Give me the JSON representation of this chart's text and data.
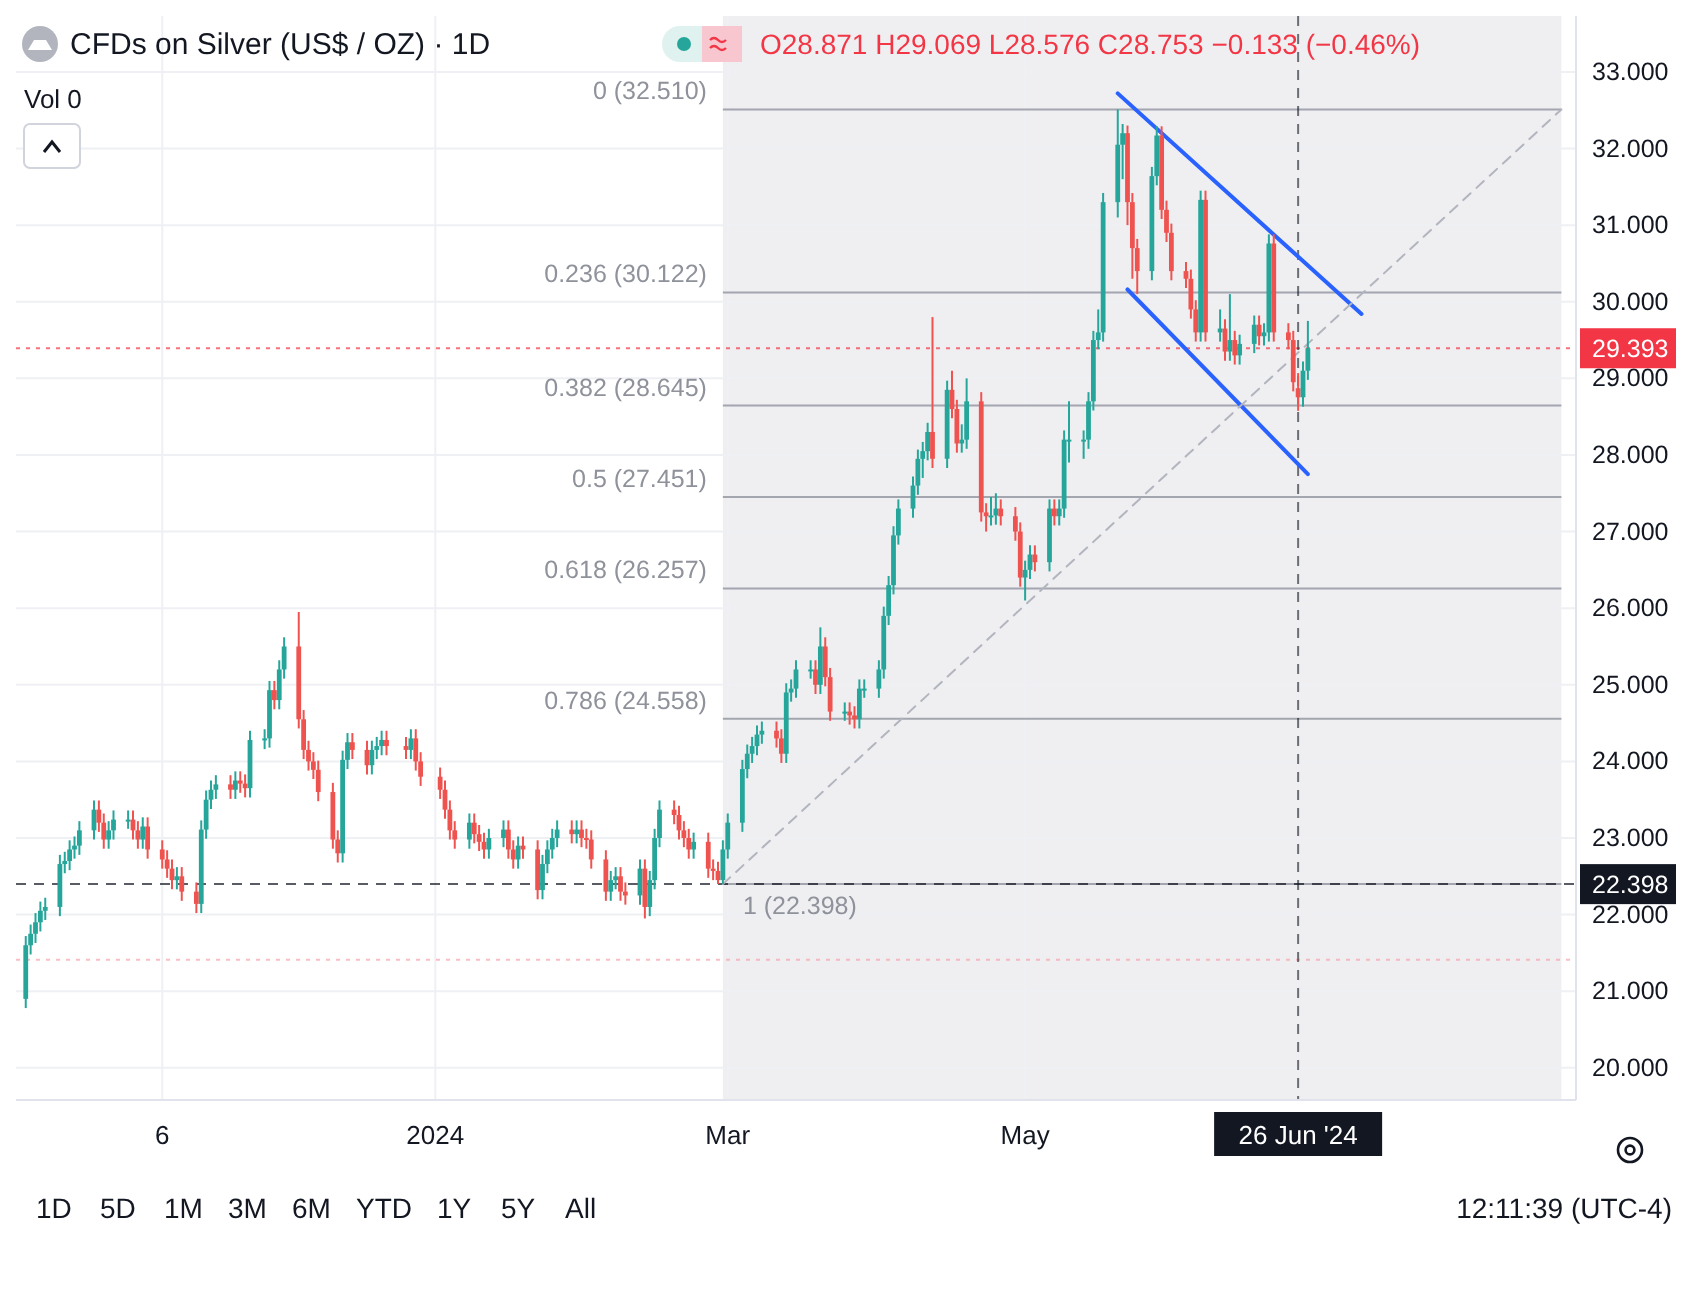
{
  "chart_data": {
    "type": "candlestick",
    "title": "CFDs on Silver (US$ / OZ) · 1D",
    "subtitle": "O28.871 H29.069 L28.576 C28.753 −0.133 (−0.46%)",
    "annotations": [
      "Vol 0",
      "1D",
      "5D",
      "1M",
      "3M",
      "6M",
      "YTD",
      "1Y",
      "5Y",
      "All",
      "12:11:39 (UTC-4)"
    ],
    "colors": [
      "#26a69a",
      "#26a69a",
      "#26a69a",
      "#26a69a",
      "#26a69a",
      "#26a69a",
      "#26a69a",
      "#26a69a",
      "#26a69a",
      "#26a69a",
      "#26a69a",
      "#ef5350",
      "#ef5350",
      "#26a69a",
      "#26a69a",
      "#26a69a",
      "#ef5350",
      "#ef5350",
      "#26a69a",
      "#ef5350",
      "#ef5350",
      "#ef5350",
      "#ef5350",
      "#26a69a",
      "#ef5350",
      "#ef5350",
      "#26a69a",
      "#26a69a",
      "#26a69a",
      "#26a69a",
      "#ef5350",
      "#26a69a",
      "#ef5350",
      "#ef5350",
      "#26a69a",
      "#26a69a",
      "#26a69a",
      "#ef5350",
      "#26a69a",
      "#26a69a",
      "#ef5350",
      "#ef5350",
      "#ef5350",
      "#ef5350",
      "#ef5350",
      "#ef5350",
      "#ef5350",
      "#26a69a",
      "#26a69a",
      "#ef5350",
      "#ef5350",
      "#26a69a",
      "#26a69a",
      "#26a69a",
      "#ef5350",
      "#ef5350",
      "#26a69a",
      "#ef5350",
      "#ef5350",
      "#ef5350",
      "#ef5350",
      "#ef5350",
      "#ef5350",
      "#26a69a",
      "#ef5350",
      "#ef5350",
      "#ef5350",
      "#26a69a",
      "#26a69a",
      "#ef5350",
      "#ef5350",
      "#26a69a",
      "#ef5350",
      "#ef5350",
      "#26a69a",
      "#26a69a",
      "#26a69a",
      "#26a69a",
      "#ef5350",
      "#26a69a",
      "#ef5350",
      "#ef5350",
      "#ef5350",
      "#ef5350",
      "#26a69a",
      "#26a69a",
      "#ef5350",
      "#ef5350",
      "#26a69a",
      "#ef5350",
      "#26a69a",
      "#26a69a",
      "#26a69a",
      "#ef5350",
      "#ef5350",
      "#ef5350",
      "#ef5350",
      "#26a69a",
      "#ef5350",
      "#ef5350",
      "#ef5350",
      "#26a69a",
      "#26a69a",
      "#26a69a",
      "#26a69a",
      "#26a69a",
      "#26a69a",
      "#26a69a",
      "#ef5350",
      "#ef5350",
      "#26a69a",
      "#26a69a",
      "#26a69a",
      "#26a69a",
      "#ef5350",
      "#26a69a",
      "#ef5350",
      "#ef5350",
      "#26a69a",
      "#ef5350",
      "#ef5350",
      "#26a69a",
      "#26a69a",
      "#26a69a",
      "#26a69a",
      "#26a69a",
      "#26a69a",
      "#26a69a",
      "#26a69a",
      "#26a69a",
      "#26a69a",
      "#26a69a",
      "#ef5350",
      "#26a69a",
      "#ef5350",
      "#ef5350",
      "#26a69a",
      "#26a69a",
      "#ef5350",
      "#ef5350",
      "#26a69a",
      "#26a69a",
      "#ef5350",
      "#ef5350",
      "#ef5350",
      "#26a69a",
      "#26a69a",
      "#ef5350",
      "#26a69a",
      "#ef5350",
      "#26a69a",
      "#26a69a",
      "#26a69a",
      "#26a69a",
      "#26a69a",
      "#26a69a",
      "#26a69a",
      "#26a69a",
      "#26a69a",
      "#26a69a",
      "#ef5350",
      "#ef5350",
      "#ef5350",
      "#26a69a",
      "#26a69a",
      "#ef5350",
      "#ef5350",
      "#ef5350",
      "#ef5350",
      "#ef5350",
      "#ef5350",
      "#26a69a",
      "#ef5350",
      "#26a69a",
      "#ef5350",
      "#26a69a",
      "#ef5350",
      "#26a69a",
      "#26a69a",
      "#ef5350",
      "#26a69a",
      "#26a69a",
      "#ef5350",
      "#ef5350",
      "#ef5350",
      "#ef5350",
      "#26a69a",
      "#26a69a"
    ],
    "x": [
      "2023-10-09",
      "2023-10-10",
      "2023-10-11",
      "2023-10-12",
      "2023-10-13",
      "2023-10-16",
      "2023-10-17",
      "2023-10-18",
      "2023-10-19",
      "2023-10-20",
      "2023-10-23",
      "2023-10-24",
      "2023-10-25",
      "2023-10-26",
      "2023-10-27",
      "2023-10-30",
      "2023-10-31",
      "2023-11-01",
      "2023-11-02",
      "2023-11-03",
      "2023-11-06",
      "2023-11-07",
      "2023-11-08",
      "2023-11-09",
      "2023-11-10",
      "2023-11-13",
      "2023-11-14",
      "2023-11-15",
      "2023-11-16",
      "2023-11-17",
      "2023-11-20",
      "2023-11-21",
      "2023-11-22",
      "2023-11-23",
      "2023-11-24",
      "2023-11-27",
      "2023-11-28",
      "2023-11-29",
      "2023-11-30",
      "2023-12-01",
      "2023-12-04",
      "2023-12-05",
      "2023-12-06",
      "2023-12-07",
      "2023-12-08",
      "2023-12-11",
      "2023-12-12",
      "2023-12-13",
      "2023-12-14",
      "2023-12-15",
      "2023-12-18",
      "2023-12-19",
      "2023-12-20",
      "2023-12-21",
      "2023-12-22",
      "2023-12-26",
      "2023-12-27",
      "2023-12-28",
      "2023-12-29",
      "2024-01-02",
      "2024-01-03",
      "2024-01-04",
      "2024-01-05",
      "2024-01-08",
      "2024-01-09",
      "2024-01-10",
      "2024-01-11",
      "2024-01-12",
      "2024-01-15",
      "2024-01-16",
      "2024-01-17",
      "2024-01-18",
      "2024-01-19",
      "2024-01-22",
      "2024-01-23",
      "2024-01-24",
      "2024-01-25",
      "2024-01-26",
      "2024-01-29",
      "2024-01-30",
      "2024-01-31",
      "2024-02-01",
      "2024-02-02",
      "2024-02-05",
      "2024-02-06",
      "2024-02-07",
      "2024-02-08",
      "2024-02-09",
      "2024-02-12",
      "2024-02-13",
      "2024-02-14",
      "2024-02-15",
      "2024-02-16",
      "2024-02-19",
      "2024-02-20",
      "2024-02-21",
      "2024-02-22",
      "2024-02-23",
      "2024-02-26",
      "2024-02-27",
      "2024-02-28",
      "2024-02-29",
      "2024-03-01",
      "2024-03-04",
      "2024-03-05",
      "2024-03-06",
      "2024-03-07",
      "2024-03-08",
      "2024-03-11",
      "2024-03-12",
      "2024-03-13",
      "2024-03-14",
      "2024-03-15",
      "2024-03-18",
      "2024-03-19",
      "2024-03-20",
      "2024-03-21",
      "2024-03-22",
      "2024-03-25",
      "2024-03-26",
      "2024-03-27",
      "2024-03-28",
      "2024-03-29",
      "2024-04-01",
      "2024-04-02",
      "2024-04-03",
      "2024-04-04",
      "2024-04-05",
      "2024-04-08",
      "2024-04-09",
      "2024-04-10",
      "2024-04-11",
      "2024-04-12",
      "2024-04-15",
      "2024-04-16",
      "2024-04-17",
      "2024-04-18",
      "2024-04-19",
      "2024-04-22",
      "2024-04-23",
      "2024-04-24",
      "2024-04-25",
      "2024-04-26",
      "2024-04-29",
      "2024-04-30",
      "2024-05-01",
      "2024-05-02",
      "2024-05-03",
      "2024-05-06",
      "2024-05-07",
      "2024-05-08",
      "2024-05-09",
      "2024-05-10",
      "2024-05-13",
      "2024-05-14",
      "2024-05-15",
      "2024-05-16",
      "2024-05-17",
      "2024-05-20",
      "2024-05-21",
      "2024-05-22",
      "2024-05-23",
      "2024-05-24",
      "2024-05-27",
      "2024-05-28",
      "2024-05-29",
      "2024-05-30",
      "2024-05-31",
      "2024-06-03",
      "2024-06-04",
      "2024-06-05",
      "2024-06-06",
      "2024-06-07",
      "2024-06-10",
      "2024-06-11",
      "2024-06-12",
      "2024-06-13",
      "2024-06-14",
      "2024-06-17",
      "2024-06-18",
      "2024-06-19",
      "2024-06-20",
      "2024-06-21",
      "2024-06-24",
      "2024-06-25",
      "2024-06-26",
      "2024-06-27",
      "2024-06-28"
    ],
    "ohlc": [
      [
        20.9,
        21.72,
        20.78,
        21.6
      ],
      [
        21.6,
        21.87,
        21.48,
        21.75
      ],
      [
        21.75,
        22.02,
        21.63,
        21.9
      ],
      [
        21.9,
        22.17,
        21.78,
        22.05
      ],
      [
        22.05,
        22.22,
        21.93,
        22.1
      ],
      [
        22.1,
        22.78,
        21.98,
        22.66
      ],
      [
        22.66,
        22.82,
        22.54,
        22.7
      ],
      [
        22.7,
        22.97,
        22.58,
        22.85
      ],
      [
        22.85,
        23.02,
        22.73,
        22.9
      ],
      [
        22.9,
        23.22,
        22.78,
        23.1
      ],
      [
        23.1,
        23.49,
        22.98,
        23.37
      ],
      [
        23.37,
        23.49,
        23.08,
        23.2
      ],
      [
        23.2,
        23.32,
        22.86,
        22.98
      ],
      [
        22.98,
        23.22,
        22.86,
        23.1
      ],
      [
        23.1,
        23.36,
        22.98,
        23.24
      ],
      [
        23.24,
        23.36,
        23.12,
        23.24
      ],
      [
        23.24,
        23.36,
        22.98,
        23.1
      ],
      [
        23.1,
        23.22,
        22.86,
        22.98
      ],
      [
        22.98,
        23.27,
        22.86,
        23.15
      ],
      [
        23.15,
        23.27,
        22.73,
        22.85
      ],
      [
        22.85,
        22.97,
        22.6,
        22.72
      ],
      [
        22.72,
        22.84,
        22.48,
        22.6
      ],
      [
        22.6,
        22.72,
        22.33,
        22.45
      ],
      [
        22.45,
        22.62,
        22.33,
        22.5
      ],
      [
        22.5,
        22.62,
        22.18,
        22.3
      ],
      [
        22.3,
        22.42,
        22.02,
        22.14
      ],
      [
        22.14,
        23.23,
        22.02,
        23.11
      ],
      [
        23.11,
        23.62,
        22.99,
        23.5
      ],
      [
        23.5,
        23.75,
        23.38,
        23.63
      ],
      [
        23.63,
        23.82,
        23.51,
        23.7
      ],
      [
        23.7,
        23.82,
        23.51,
        23.63
      ],
      [
        23.63,
        23.87,
        23.51,
        23.75
      ],
      [
        23.75,
        23.87,
        23.59,
        23.71
      ],
      [
        23.71,
        23.83,
        23.53,
        23.65
      ],
      [
        23.65,
        24.4,
        23.53,
        24.28
      ],
      [
        24.28,
        24.42,
        24.16,
        24.3
      ],
      [
        24.3,
        25.05,
        24.18,
        24.93
      ],
      [
        24.93,
        25.05,
        24.68,
        24.8
      ],
      [
        24.8,
        25.32,
        24.68,
        25.2
      ],
      [
        25.2,
        25.62,
        25.08,
        25.5
      ],
      [
        25.5,
        25.95,
        24.43,
        24.55
      ],
      [
        24.55,
        24.67,
        24.03,
        24.15
      ],
      [
        24.15,
        24.27,
        23.88,
        24.0
      ],
      [
        24.0,
        24.12,
        23.77,
        23.89
      ],
      [
        23.89,
        24.01,
        23.48,
        23.6
      ],
      [
        23.6,
        23.72,
        22.86,
        22.98
      ],
      [
        22.98,
        23.1,
        22.68,
        22.8
      ],
      [
        22.8,
        24.14,
        22.68,
        24.02
      ],
      [
        24.02,
        24.37,
        23.9,
        24.25
      ],
      [
        24.25,
        24.37,
        24.03,
        24.15
      ],
      [
        24.15,
        24.27,
        23.83,
        23.95
      ],
      [
        23.95,
        24.27,
        23.83,
        24.15
      ],
      [
        24.15,
        24.32,
        24.03,
        24.2
      ],
      [
        24.2,
        24.4,
        24.08,
        24.28
      ],
      [
        24.28,
        24.4,
        24.08,
        24.2
      ],
      [
        24.2,
        24.32,
        24.03,
        24.15
      ],
      [
        24.15,
        24.42,
        24.03,
        24.3
      ],
      [
        24.3,
        24.42,
        23.88,
        24.0
      ],
      [
        24.0,
        24.12,
        23.68,
        23.8
      ],
      [
        23.8,
        23.92,
        23.51,
        23.63
      ],
      [
        23.63,
        23.75,
        23.25,
        23.37
      ],
      [
        23.37,
        23.49,
        22.98,
        23.1
      ],
      [
        23.1,
        23.22,
        22.86,
        22.98
      ],
      [
        22.98,
        23.32,
        22.86,
        23.2
      ],
      [
        23.2,
        23.32,
        22.93,
        23.05
      ],
      [
        23.05,
        23.17,
        22.83,
        22.95
      ],
      [
        22.95,
        23.07,
        22.73,
        22.85
      ],
      [
        22.85,
        23.12,
        22.73,
        23.0
      ],
      [
        23.0,
        23.23,
        22.88,
        23.11
      ],
      [
        23.11,
        23.23,
        22.73,
        22.85
      ],
      [
        22.85,
        22.97,
        22.6,
        22.72
      ],
      [
        22.72,
        23.02,
        22.6,
        22.9
      ],
      [
        22.9,
        23.02,
        22.73,
        22.85
      ],
      [
        22.85,
        22.97,
        22.2,
        22.32
      ],
      [
        22.32,
        22.78,
        22.2,
        22.66
      ],
      [
        22.66,
        22.97,
        22.54,
        22.85
      ],
      [
        22.85,
        23.12,
        22.73,
        23.0
      ],
      [
        23.0,
        23.23,
        22.88,
        23.11
      ],
      [
        23.11,
        23.23,
        22.93,
        23.05
      ],
      [
        23.05,
        23.23,
        22.93,
        23.11
      ],
      [
        23.11,
        23.23,
        22.88,
        23.0
      ],
      [
        23.0,
        23.12,
        22.86,
        22.98
      ],
      [
        22.98,
        23.1,
        22.6,
        22.72
      ],
      [
        22.72,
        22.84,
        22.18,
        22.3
      ],
      [
        22.3,
        22.57,
        22.18,
        22.45
      ],
      [
        22.45,
        22.62,
        22.33,
        22.5
      ],
      [
        22.5,
        22.62,
        22.18,
        22.3
      ],
      [
        22.3,
        22.42,
        22.13,
        22.25
      ],
      [
        22.25,
        22.72,
        22.13,
        22.6
      ],
      [
        22.6,
        22.72,
        21.95,
        22.1
      ],
      [
        22.1,
        22.57,
        21.98,
        22.45
      ],
      [
        22.45,
        23.12,
        22.33,
        23.0
      ],
      [
        23.0,
        23.49,
        22.88,
        23.37
      ],
      [
        23.37,
        23.49,
        23.18,
        23.3
      ],
      [
        23.3,
        23.42,
        22.98,
        23.1
      ],
      [
        23.1,
        23.22,
        22.88,
        23.0
      ],
      [
        23.0,
        23.12,
        22.73,
        22.85
      ],
      [
        22.85,
        23.07,
        22.73,
        22.95
      ],
      [
        22.95,
        23.07,
        22.48,
        22.6
      ],
      [
        22.6,
        22.72,
        22.45,
        22.57
      ],
      [
        22.57,
        22.69,
        22.4,
        22.45
      ],
      [
        22.45,
        22.97,
        22.398,
        22.85
      ],
      [
        22.85,
        23.32,
        22.73,
        23.2
      ],
      [
        23.2,
        24.02,
        23.08,
        23.9
      ],
      [
        23.9,
        24.22,
        23.78,
        24.1
      ],
      [
        24.1,
        24.32,
        23.98,
        24.2
      ],
      [
        24.2,
        24.47,
        24.08,
        24.35
      ],
      [
        24.35,
        24.52,
        24.23,
        24.4
      ],
      [
        24.4,
        24.52,
        24.18,
        24.3
      ],
      [
        24.3,
        24.42,
        23.98,
        24.1
      ],
      [
        24.1,
        25.02,
        23.98,
        24.9
      ],
      [
        24.9,
        25.07,
        24.78,
        24.95
      ],
      [
        24.95,
        25.32,
        24.83,
        25.2
      ],
      [
        25.2,
        25.32,
        25.08,
        25.2
      ],
      [
        25.2,
        25.32,
        24.88,
        25.0
      ],
      [
        25.0,
        25.75,
        24.88,
        25.5
      ],
      [
        25.5,
        25.62,
        24.98,
        25.1
      ],
      [
        25.1,
        25.22,
        24.53,
        24.65
      ],
      [
        24.65,
        24.77,
        24.53,
        24.65
      ],
      [
        24.65,
        24.77,
        24.48,
        24.6
      ],
      [
        24.6,
        24.72,
        24.43,
        24.55
      ],
      [
        24.55,
        25.07,
        24.43,
        24.95
      ],
      [
        24.95,
        25.07,
        24.83,
        24.95
      ],
      [
        24.95,
        25.32,
        24.83,
        25.2
      ],
      [
        25.2,
        26.02,
        25.08,
        25.9
      ],
      [
        25.9,
        26.42,
        25.78,
        26.3
      ],
      [
        26.3,
        27.07,
        26.18,
        26.95
      ],
      [
        26.95,
        27.42,
        26.83,
        27.3
      ],
      [
        27.3,
        27.72,
        27.18,
        27.6
      ],
      [
        27.6,
        28.07,
        27.48,
        27.95
      ],
      [
        27.95,
        28.17,
        27.7,
        28.05
      ],
      [
        28.05,
        28.42,
        27.93,
        28.3
      ],
      [
        28.3,
        29.8,
        27.83,
        27.95
      ],
      [
        27.95,
        28.97,
        27.83,
        28.85
      ],
      [
        28.85,
        29.1,
        28.48,
        28.6
      ],
      [
        28.6,
        28.72,
        28.03,
        28.15
      ],
      [
        28.15,
        28.4,
        28.03,
        28.2
      ],
      [
        28.2,
        29.0,
        28.08,
        28.7
      ],
      [
        28.7,
        28.82,
        27.13,
        27.25
      ],
      [
        27.25,
        27.37,
        27.0,
        27.2
      ],
      [
        27.2,
        27.45,
        27.08,
        27.21
      ],
      [
        27.21,
        27.5,
        27.09,
        27.3
      ],
      [
        27.3,
        27.42,
        27.08,
        27.2
      ],
      [
        27.2,
        27.32,
        26.88,
        27.0
      ],
      [
        27.0,
        27.12,
        26.28,
        26.4
      ],
      [
        26.4,
        26.62,
        26.1,
        26.5
      ],
      [
        26.5,
        26.82,
        26.38,
        26.7
      ],
      [
        26.7,
        26.82,
        26.48,
        26.6
      ],
      [
        26.6,
        27.42,
        26.48,
        27.3
      ],
      [
        27.3,
        27.42,
        27.08,
        27.2
      ],
      [
        27.2,
        27.42,
        27.08,
        27.3
      ],
      [
        27.3,
        28.32,
        27.18,
        28.2
      ],
      [
        28.2,
        28.7,
        27.9,
        28.2
      ],
      [
        28.2,
        28.32,
        27.95,
        28.2
      ],
      [
        28.2,
        28.82,
        28.08,
        28.7
      ],
      [
        28.7,
        29.62,
        28.58,
        29.5
      ],
      [
        29.5,
        29.9,
        29.38,
        29.6
      ],
      [
        29.6,
        31.42,
        29.48,
        31.3
      ],
      [
        31.3,
        32.51,
        31.1,
        32.05
      ],
      [
        32.05,
        32.32,
        31.6,
        32.2
      ],
      [
        32.2,
        32.3,
        31.0,
        31.3
      ],
      [
        31.3,
        31.42,
        30.3,
        30.7
      ],
      [
        30.7,
        30.82,
        30.1,
        30.4
      ],
      [
        30.4,
        31.76,
        30.28,
        31.64
      ],
      [
        31.64,
        32.29,
        31.52,
        32.17
      ],
      [
        32.17,
        32.29,
        31.08,
        31.2
      ],
      [
        31.2,
        31.32,
        30.78,
        30.9
      ],
      [
        30.9,
        31.02,
        30.28,
        30.4
      ],
      [
        30.4,
        30.52,
        30.18,
        30.3
      ],
      [
        30.3,
        30.42,
        29.78,
        29.9
      ],
      [
        29.9,
        30.02,
        29.48,
        29.6
      ],
      [
        29.6,
        31.45,
        29.48,
        31.33
      ],
      [
        31.33,
        31.45,
        29.48,
        29.6
      ],
      [
        29.6,
        29.9,
        29.48,
        29.65
      ],
      [
        29.65,
        29.77,
        29.23,
        29.35
      ],
      [
        29.35,
        30.1,
        29.23,
        29.5
      ],
      [
        29.5,
        29.62,
        29.18,
        29.3
      ],
      [
        29.3,
        29.57,
        29.18,
        29.45
      ],
      [
        29.45,
        29.82,
        29.33,
        29.7
      ],
      [
        29.7,
        29.82,
        29.43,
        29.55
      ],
      [
        29.55,
        29.72,
        29.43,
        29.6
      ],
      [
        29.6,
        30.88,
        29.48,
        30.76
      ],
      [
        30.76,
        30.88,
        29.48,
        29.6
      ],
      [
        29.6,
        29.72,
        29.38,
        29.5
      ],
      [
        29.5,
        29.62,
        28.83,
        28.95
      ],
      [
        28.871,
        29.069,
        28.576,
        28.753
      ],
      [
        28.753,
        29.22,
        28.63,
        29.1
      ],
      [
        29.1,
        29.75,
        28.98,
        29.393
      ]
    ],
    "series": [
      {
        "type": "line",
        "color": "#2962ff",
        "x": [
          "2024-05-20",
          "2024-07-09"
        ],
        "values": [
          32.72,
          29.84
        ]
      },
      {
        "type": "line",
        "color": "#2962ff",
        "x": [
          "2024-05-22",
          "2024-06-28"
        ],
        "values": [
          30.16,
          27.75
        ]
      },
      {
        "type": "line",
        "color": "#b2b5be",
        "line_style": "dashed",
        "x": [
          "2024-02-29",
          "2024-08-19"
        ],
        "values": [
          22.398,
          32.51
        ]
      }
    ],
    "xlim": [
      "2023-10-07",
      "2024-08-22"
    ],
    "xticks": [
      {
        "value": "2023-11-06",
        "label": "6"
      },
      {
        "value": "2024-01-01",
        "label": "2024"
      },
      {
        "value": "2024-03-01",
        "label": "Mar"
      },
      {
        "value": "2024-05-01",
        "label": "May"
      }
    ],
    "ylim": [
      19.58,
      33.73
    ],
    "yticks": [
      {
        "value": 20,
        "label": "20.000"
      },
      {
        "value": 21,
        "label": "21.000"
      },
      {
        "value": 22,
        "label": "22.000"
      },
      {
        "value": 23,
        "label": "23.000"
      },
      {
        "value": 24,
        "label": "24.000"
      },
      {
        "value": 25,
        "label": "25.000"
      },
      {
        "value": 26,
        "label": "26.000"
      },
      {
        "value": 27,
        "label": "27.000"
      },
      {
        "value": 28,
        "label": "28.000"
      },
      {
        "value": 29,
        "label": "29.000"
      },
      {
        "value": 30,
        "label": "30.000"
      },
      {
        "value": 31,
        "label": "31.000"
      },
      {
        "value": 32,
        "label": "32.000"
      },
      {
        "value": 33,
        "label": "33.000"
      }
    ],
    "grid": true,
    "bands": [
      {
        "axis": "x",
        "from": "2024-02-29",
        "to": "2024-08-19",
        "color": "#efeff2"
      }
    ],
    "ref_lines": [
      {
        "axis": "y",
        "value": 32.51,
        "label": "0 (32.510)",
        "color": "#a3a6af",
        "line_style": "solid"
      },
      {
        "axis": "y",
        "value": 30.122,
        "label": "0.236 (30.122)",
        "color": "#a3a6af",
        "line_style": "solid"
      },
      {
        "axis": "y",
        "value": 28.645,
        "label": "0.382 (28.645)",
        "color": "#a3a6af",
        "line_style": "solid"
      },
      {
        "axis": "y",
        "value": 27.451,
        "label": "0.5 (27.451)",
        "color": "#a3a6af",
        "line_style": "solid"
      },
      {
        "axis": "y",
        "value": 26.257,
        "label": "0.618 (26.257)",
        "color": "#a3a6af",
        "line_style": "solid"
      },
      {
        "axis": "y",
        "value": 24.558,
        "label": "0.786 (24.558)",
        "color": "#a3a6af",
        "line_style": "solid"
      },
      {
        "axis": "y",
        "value": 22.398,
        "label": "1 (22.398)",
        "color": "#a3a6af",
        "line_style": "solid"
      },
      {
        "axis": "y",
        "value": 29.393,
        "label": "29.393",
        "color": "#f23645",
        "line_style": "dotted"
      },
      {
        "axis": "y",
        "value": 22.398,
        "label": "22.398",
        "color": "#131722",
        "line_style": "dashed"
      },
      {
        "axis": "y",
        "value": 21.41,
        "color": "#f7a1a9",
        "line_style": "dotted"
      },
      {
        "axis": "x",
        "value": "2024-06-26",
        "label": "26 Jun '24",
        "color": "#131722",
        "line_style": "dashed"
      }
    ]
  }
}
